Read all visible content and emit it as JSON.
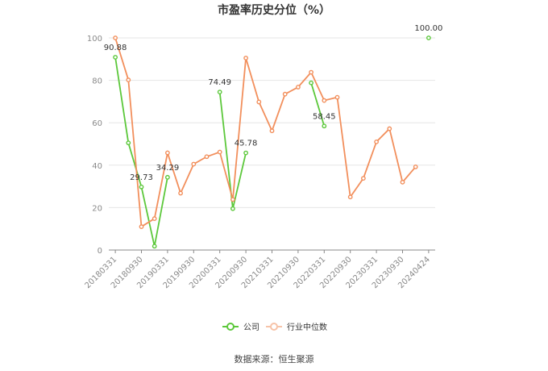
{
  "chart_data": {
    "type": "line",
    "title": "市盈率历史分位（%）",
    "xlabel": "",
    "ylabel": "",
    "ylim": [
      0,
      100
    ],
    "yticks": [
      0,
      20,
      40,
      60,
      80,
      100
    ],
    "categories": [
      "20180331",
      "20180630",
      "20180930",
      "20181231",
      "20190331",
      "20190630",
      "20190930",
      "20191231",
      "20200331",
      "20200630",
      "20200930",
      "20201231",
      "20210331",
      "20210630",
      "20210930",
      "20211231",
      "20220331",
      "20220630",
      "20220930",
      "20221231",
      "20230331",
      "20230630",
      "20230930",
      "20231231",
      "20240424"
    ],
    "x_tick_labels": [
      "20180331",
      "20180930",
      "20190331",
      "20190930",
      "20200331",
      "20200930",
      "20210331",
      "20210930",
      "20220331",
      "20220930",
      "20230331",
      "20230930",
      "20240424"
    ],
    "series": [
      {
        "name": "公司",
        "color": "#5cc83b",
        "values": [
          90.88,
          50.5,
          29.73,
          1.8,
          34.29,
          null,
          null,
          null,
          74.49,
          19.5,
          45.78,
          null,
          null,
          null,
          null,
          78.8,
          58.45,
          null,
          null,
          null,
          null,
          null,
          null,
          null,
          100.0
        ],
        "labels": [
          {
            "index": 0,
            "text": "90.88"
          },
          {
            "index": 2,
            "text": "29.73"
          },
          {
            "index": 4,
            "text": "34.29"
          },
          {
            "index": 8,
            "text": "74.49"
          },
          {
            "index": 10,
            "text": "45.78"
          },
          {
            "index": 16,
            "text": "58.45"
          },
          {
            "index": 24,
            "text": "100.00"
          }
        ]
      },
      {
        "name": "行业中位数",
        "color": "#f28f5c",
        "values": [
          100.0,
          80.2,
          11.0,
          14.8,
          45.8,
          26.8,
          40.5,
          44.0,
          46.2,
          23.8,
          90.5,
          69.8,
          56.2,
          73.5,
          76.8,
          83.8,
          70.5,
          72.0,
          25.0,
          33.8,
          51.0,
          57.2,
          32.0,
          39.2,
          null
        ]
      }
    ],
    "grid": true,
    "legend_position": "bottom-center"
  },
  "source_text": "数据来源：恒生聚源"
}
